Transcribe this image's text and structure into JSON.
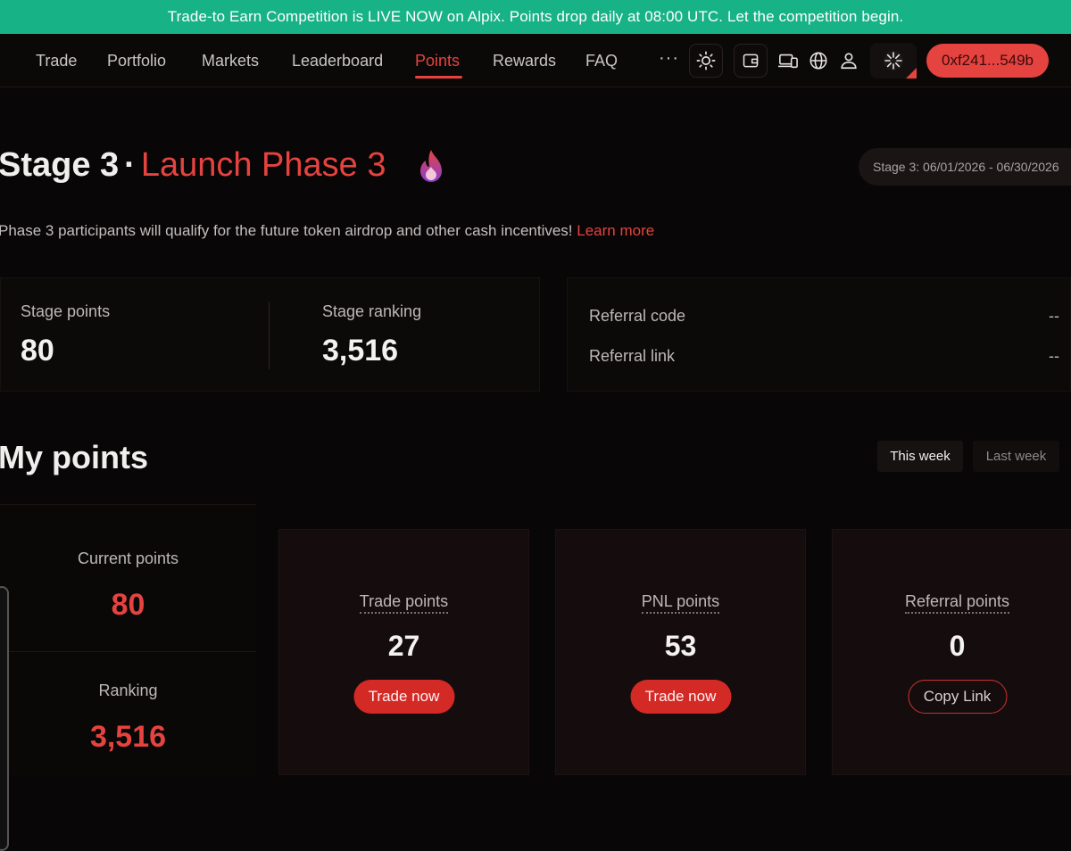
{
  "banner": {
    "text": "Trade-to Earn Competition is LIVE NOW on Alpix. Points drop daily at 08:00 UTC. Let the competition begin."
  },
  "nav": {
    "items": [
      {
        "label": "Trade"
      },
      {
        "label": "Portfolio"
      },
      {
        "label": "Markets"
      },
      {
        "label": "Leaderboard"
      },
      {
        "label": "Points",
        "active": true
      },
      {
        "label": "Rewards"
      },
      {
        "label": "FAQ"
      }
    ],
    "more": "···",
    "icons": [
      "sun-icon",
      "wallet-icon",
      "devices-icon",
      "globe-icon",
      "user-icon",
      "avatar-icon"
    ],
    "wallet_address": "0xf241...549b"
  },
  "stage": {
    "prefix": "Stage 3",
    "separator": "·",
    "phase": "Launch Phase 3",
    "icon": "fire-icon",
    "date_range": "Stage 3: 06/01/2026 - 06/30/2026",
    "description": "Phase 3 participants will qualify for the future token airdrop and other cash incentives!",
    "learn_more": "Learn more"
  },
  "stats": {
    "stage_points_label": "Stage points",
    "stage_points_value": "80",
    "stage_ranking_label": "Stage ranking",
    "stage_ranking_value": "3,516"
  },
  "referral": {
    "code_label": "Referral code",
    "code_value": "--",
    "link_label": "Referral link",
    "link_value": "--"
  },
  "my_points": {
    "title": "My points",
    "tabs": {
      "this_week": "This week",
      "last_week": "Last week"
    },
    "current_label": "Current points",
    "current_value": "80",
    "ranking_label": "Ranking",
    "ranking_value": "3,516",
    "cards": [
      {
        "label": "Trade points",
        "value": "27",
        "button": "Trade now"
      },
      {
        "label": "PNL points",
        "value": "53",
        "button": "Trade now"
      },
      {
        "label": "Referral points",
        "value": "0",
        "button": "Copy Link"
      }
    ]
  },
  "colors": {
    "accent": "#e5433f",
    "banner": "#17b286",
    "background": "#080606"
  }
}
